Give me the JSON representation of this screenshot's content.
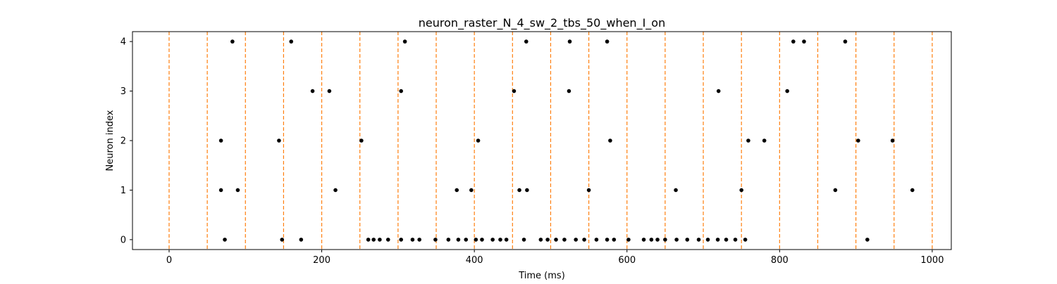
{
  "chart_data": {
    "type": "scatter",
    "title": "neuron_raster_N_4_sw_2_tbs_50_when_I_on",
    "xlabel": "Time (ms)",
    "ylabel": "Neuron index",
    "xlim": [
      -48,
      1025
    ],
    "ylim": [
      -0.2,
      4.2
    ],
    "xticks": [
      0,
      200,
      400,
      600,
      800,
      1000
    ],
    "yticks": [
      0,
      1,
      2,
      3,
      4
    ],
    "grid": false,
    "legend": "none",
    "marker_color": "#000000",
    "vline_color": "#ff7f0e",
    "vlines": [
      0,
      50,
      100,
      150,
      200,
      250,
      300,
      350,
      400,
      450,
      500,
      550,
      600,
      650,
      700,
      750,
      800,
      850,
      900,
      950,
      1000
    ],
    "series": [
      {
        "neuron": 4,
        "x": [
          83,
          160,
          309,
          468,
          525,
          574,
          818,
          832,
          886
        ]
      },
      {
        "neuron": 3,
        "x": [
          188,
          210,
          304,
          452,
          524,
          720,
          810
        ]
      },
      {
        "neuron": 2,
        "x": [
          68,
          144,
          252,
          405,
          578,
          759,
          780,
          903,
          948
        ]
      },
      {
        "neuron": 1,
        "x": [
          68,
          90,
          218,
          377,
          396,
          459,
          469,
          550,
          664,
          750,
          873,
          974
        ]
      },
      {
        "neuron": 0,
        "x": [
          73,
          148,
          173,
          261,
          268,
          276,
          287,
          304,
          319,
          328,
          349,
          366,
          379,
          389,
          402,
          410,
          424,
          434,
          442,
          465,
          487,
          496,
          507,
          518,
          533,
          544,
          560,
          574,
          583,
          602,
          622,
          632,
          640,
          650,
          665,
          679,
          694,
          706,
          719,
          730,
          742,
          755,
          915
        ]
      }
    ]
  }
}
